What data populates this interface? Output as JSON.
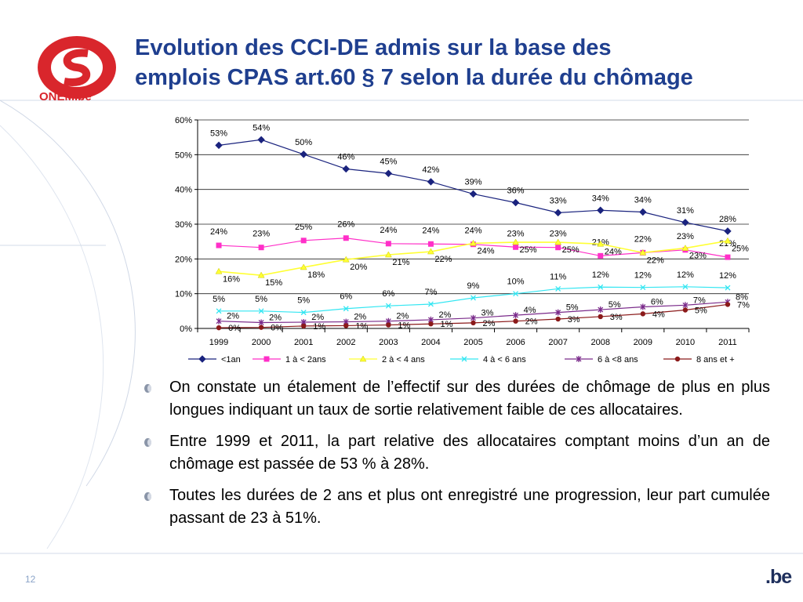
{
  "slide": {
    "title_line1": "Evolution des CCI-DE admis sur la base des",
    "title_line2": "emplois CPAS art.60 § 7 selon la durée du chômage",
    "page_number": "12",
    "footer_brand": ".be",
    "logo_text": "ONEM.be"
  },
  "bullets": [
    "On constate un étalement de l’effectif sur des durées de chômage de plus en plus longues indiquant un taux de sortie relativement faible de ces allocataires.",
    "Entre 1999 et 2011, la part relative des allocataires comptant moins d’un an de chômage est passée de 53 % à 28%.",
    "Toutes les durées de 2 ans et plus ont enregistré une progression, leur part cumulée passant de 23 à 51%."
  ],
  "colors": {
    "title": "#1f3f8f",
    "logo_red": "#d9262c",
    "series": [
      "#1a237e",
      "#ff2fc8",
      "#ffff33",
      "#33e6f2",
      "#7a2a8a",
      "#8b1a1a"
    ]
  },
  "chart_data": {
    "type": "line",
    "categories": [
      "1999",
      "2000",
      "2001",
      "2002",
      "2003",
      "2004",
      "2005",
      "2006",
      "2007",
      "2008",
      "2009",
      "2010",
      "2011"
    ],
    "ylim": [
      0,
      60
    ],
    "yticks": [
      "0%",
      "10%",
      "20%",
      "30%",
      "40%",
      "50%",
      "60%"
    ],
    "grid": true,
    "legend_position": "bottom",
    "series": [
      {
        "name": "<1an",
        "marker": "diamond",
        "values": [
          52.7,
          54.3,
          50.1,
          45.9,
          44.6,
          42.2,
          38.7,
          36.2,
          33.3,
          34.0,
          33.5,
          30.5,
          28.0
        ],
        "labels": [
          "53%",
          "54%",
          "50%",
          "46%",
          "45%",
          "42%",
          "39%",
          "36%",
          "33%",
          "34%",
          "34%",
          "31%",
          "28%"
        ]
      },
      {
        "name": "1 à < 2ans",
        "marker": "square",
        "values": [
          23.9,
          23.3,
          25.3,
          26.0,
          24.4,
          24.3,
          24.2,
          23.4,
          23.3,
          20.9,
          21.8,
          22.6,
          20.5
        ],
        "labels": [
          "24%",
          "23%",
          "25%",
          "26%",
          "24%",
          "24%",
          "24%",
          "23%",
          "23%",
          "21%",
          "22%",
          "23%",
          "21%"
        ]
      },
      {
        "name": "2 à < 4 ans",
        "marker": "triangle",
        "values": [
          16.4,
          15.3,
          17.6,
          19.8,
          21.2,
          22.1,
          24.5,
          24.8,
          24.8,
          24.3,
          21.8,
          23.1,
          25.2
        ],
        "labels": [
          "16%",
          "15%",
          "18%",
          "20%",
          "21%",
          "22%",
          "24%",
          "25%",
          "25%",
          "24%",
          "22%",
          "23%",
          "25%"
        ]
      },
      {
        "name": "4 à < 6 ans",
        "marker": "x",
        "values": [
          5.0,
          5.0,
          4.6,
          5.7,
          6.5,
          7.0,
          8.8,
          10.0,
          11.4,
          11.9,
          11.8,
          12.0,
          11.7
        ],
        "labels": [
          "5%",
          "5%",
          "5%",
          "6%",
          "6%",
          "7%",
          "9%",
          "10%",
          "11%",
          "12%",
          "12%",
          "12%",
          "12%"
        ]
      },
      {
        "name": "6 à <8 ans",
        "marker": "star",
        "values": [
          2.1,
          1.7,
          1.8,
          1.9,
          2.1,
          2.5,
          3.0,
          3.8,
          4.6,
          5.4,
          6.2,
          6.7,
          7.6
        ],
        "labels": [
          "2%",
          "2%",
          "2%",
          "2%",
          "2%",
          "2%",
          "3%",
          "4%",
          "5%",
          "5%",
          "6%",
          "7%",
          "8%"
        ]
      },
      {
        "name": "8 ans et +",
        "marker": "circle",
        "values": [
          0.2,
          0.3,
          0.7,
          0.8,
          1.0,
          1.3,
          1.6,
          2.1,
          2.7,
          3.4,
          4.2,
          5.3,
          6.9
        ],
        "labels": [
          "0%",
          "0%",
          "1%",
          "1%",
          "1%",
          "1%",
          "2%",
          "2%",
          "3%",
          "3%",
          "4%",
          "5%",
          "7%"
        ]
      }
    ]
  }
}
